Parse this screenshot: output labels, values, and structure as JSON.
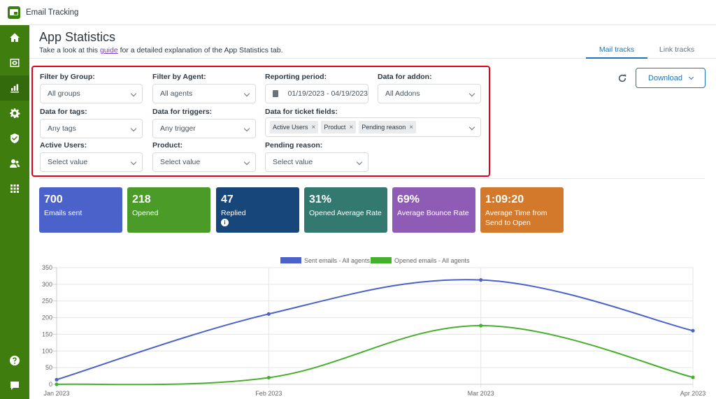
{
  "app": {
    "title": "Email Tracking"
  },
  "sidebar": {
    "items": [
      {
        "icon": "home-icon"
      },
      {
        "icon": "eye-icon"
      },
      {
        "icon": "bar-chart-icon",
        "active": true
      },
      {
        "icon": "gear-icon"
      },
      {
        "icon": "shield-icon"
      },
      {
        "icon": "users-icon"
      },
      {
        "icon": "apps-grid-icon"
      }
    ],
    "bottom": [
      {
        "icon": "help-icon"
      },
      {
        "icon": "chat-icon"
      }
    ]
  },
  "header": {
    "title": "App Statistics",
    "subtitle_pre": "Take a look at this ",
    "subtitle_link": "guide",
    "subtitle_post": " for a detailed explanation of the App Statistics tab.",
    "tabs": [
      {
        "label": "Mail tracks",
        "active": true
      },
      {
        "label": "Link tracks"
      }
    ]
  },
  "toolbar": {
    "download_label": "Download"
  },
  "filters": {
    "group": {
      "label": "Filter by Group:",
      "value": "All groups"
    },
    "agent": {
      "label": "Filter by Agent:",
      "value": "All agents"
    },
    "period": {
      "label": "Reporting period:",
      "value": "01/19/2023 - 04/19/2023"
    },
    "addon": {
      "label": "Data for addon:",
      "value": "All Addons"
    },
    "tags": {
      "label": "Data for tags:",
      "value": "Any tags"
    },
    "triggers": {
      "label": "Data for triggers:",
      "value": "Any trigger"
    },
    "ticket_fields": {
      "label": "Data for ticket fields:",
      "chips": [
        "Active Users",
        "Product",
        "Pending reason"
      ]
    },
    "active_users": {
      "label": "Active Users:",
      "value": "Select value"
    },
    "product": {
      "label": "Product:",
      "value": "Select value"
    },
    "pending_reason": {
      "label": "Pending reason:",
      "value": "Select value"
    }
  },
  "stats": [
    {
      "value": "700",
      "label": "Emails sent",
      "color": "#4a62c9"
    },
    {
      "value": "218",
      "label": "Opened",
      "color": "#4b9b28"
    },
    {
      "value": "47",
      "label": "Replied",
      "color": "#17477a"
    },
    {
      "value": "31%",
      "label": "Opened Average Rate",
      "color": "#34796f"
    },
    {
      "value": "69%",
      "label": "Average Bounce Rate",
      "color": "#8e5bb5"
    },
    {
      "value": "1:09:20",
      "label": "Average Time from Send to Open",
      "color": "#d2792c"
    }
  ],
  "chart_data": {
    "type": "line",
    "categories": [
      "Jan 2023",
      "Feb 2023",
      "Mar 2023",
      "Apr 2023"
    ],
    "series": [
      {
        "name": "Sent emails - All agents",
        "values": [
          14,
          211,
          313,
          161
        ],
        "color": "#4a62c9"
      },
      {
        "name": "Opened emails - All agents",
        "values": [
          0,
          20,
          176,
          21
        ],
        "color": "#44b02c"
      }
    ],
    "yticks": [
      0,
      50,
      100,
      150,
      200,
      250,
      300,
      350
    ],
    "ylim": [
      0,
      350
    ],
    "legend": "top"
  }
}
